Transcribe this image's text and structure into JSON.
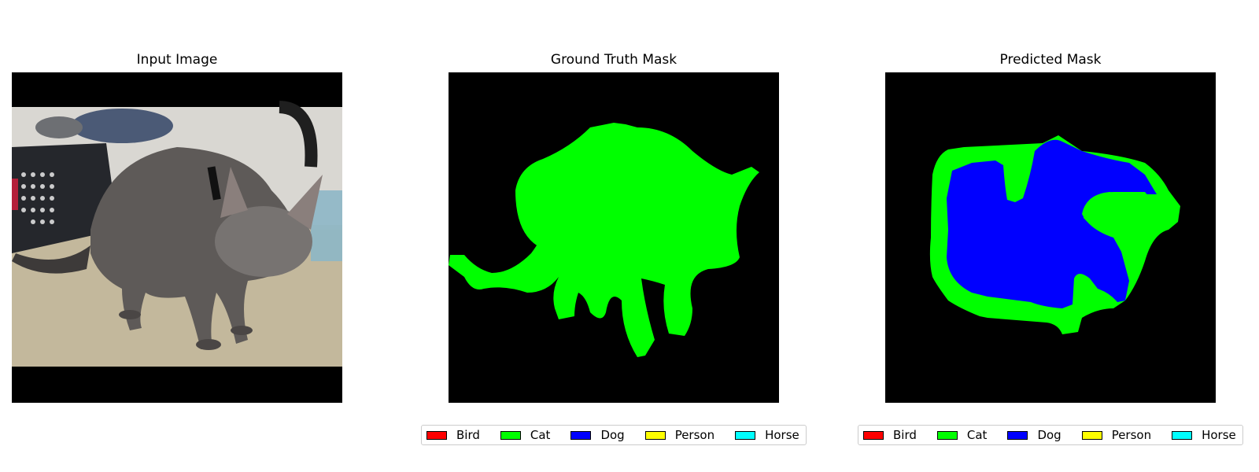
{
  "panels": [
    {
      "title": "Input Image"
    },
    {
      "title": "Ground Truth Mask"
    },
    {
      "title": "Predicted Mask"
    }
  ],
  "legend": {
    "items": [
      {
        "label": "Bird",
        "color": "#ff0000"
      },
      {
        "label": "Cat",
        "color": "#00ff00"
      },
      {
        "label": "Dog",
        "color": "#0000ff"
      },
      {
        "label": "Person",
        "color": "#ffff00"
      },
      {
        "label": "Horse",
        "color": "#00ffff"
      }
    ]
  },
  "colors": {
    "background_class": "#000000",
    "cat": "#00ff00",
    "dog": "#0000ff"
  }
}
